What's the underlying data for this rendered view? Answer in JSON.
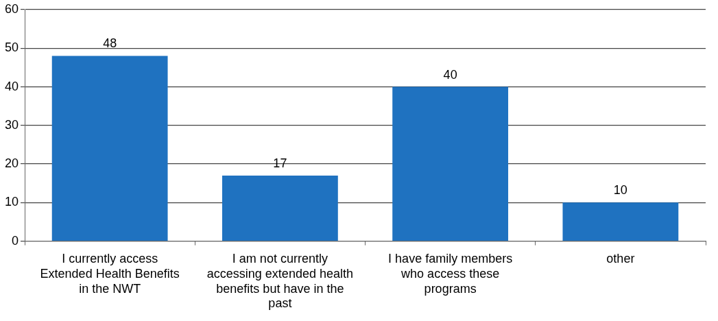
{
  "chart_data": {
    "type": "bar",
    "categories": [
      "I currently access Extended Health Benefits in the NWT",
      "I am not currently accessing extended health benefits but have in the past",
      "I have family members who access these programs",
      "other"
    ],
    "values": [
      48,
      17,
      40,
      10
    ],
    "color": "#1f72c0",
    "ylim": [
      0,
      60
    ],
    "yticks": [
      0,
      10,
      20,
      30,
      40,
      50,
      60
    ],
    "grid": "y",
    "data_labels": true
  }
}
